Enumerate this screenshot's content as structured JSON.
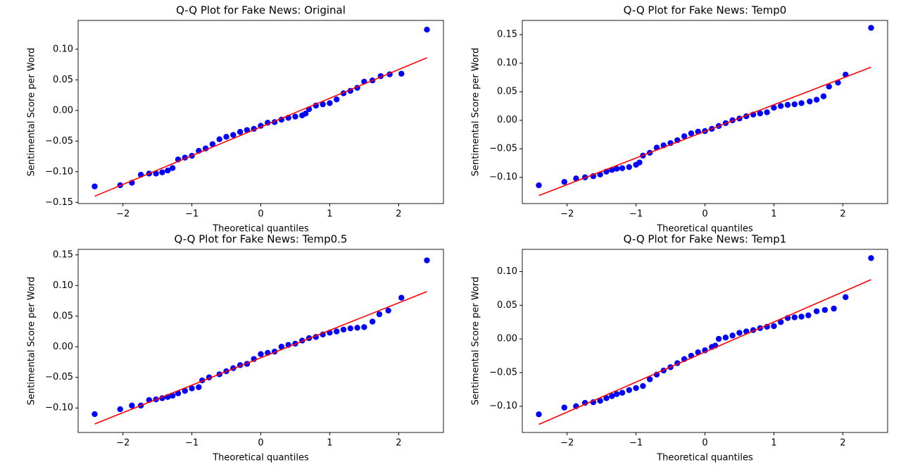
{
  "chart_data": [
    {
      "type": "scatter",
      "title": "Q-Q Plot for Fake News: Original",
      "xlabel": "Theoretical quantiles",
      "ylabel": "Sentimental Score per Word",
      "xlim": [
        -2.65,
        2.65
      ],
      "ylim": [
        -0.152,
        0.147
      ],
      "xticks": [
        {
          "value": -2,
          "label": "−2"
        },
        {
          "value": -1,
          "label": "−1"
        },
        0,
        1,
        2
      ],
      "yticks": [
        {
          "value": -0.15,
          "label": "−0.15"
        },
        {
          "value": -0.1,
          "label": "−0.10"
        },
        {
          "value": -0.05,
          "label": "−0.05"
        },
        {
          "value": 0,
          "label": "0.00"
        },
        {
          "value": 0.05,
          "label": "0.05"
        },
        {
          "value": 0.1,
          "label": "0.10"
        }
      ],
      "color": "#0000ff",
      "x": [
        -2.41,
        -2.04,
        -1.87,
        -1.74,
        -1.62,
        -1.52,
        -1.43,
        -1.35,
        -1.28,
        -1.2,
        -1.1,
        -1.0,
        -0.9,
        -0.8,
        -0.7,
        -0.6,
        -0.5,
        -0.4,
        -0.3,
        -0.2,
        -0.1,
        0,
        0.1,
        0.2,
        0.3,
        0.4,
        0.5,
        0.6,
        0.65,
        0.7,
        0.8,
        0.9,
        1.0,
        1.1,
        1.2,
        1.3,
        1.4,
        1.5,
        1.62,
        1.74,
        1.87,
        2.04,
        2.41
      ],
      "values": [
        -0.124,
        -0.122,
        -0.118,
        -0.105,
        -0.103,
        -0.103,
        -0.101,
        -0.098,
        -0.094,
        -0.08,
        -0.077,
        -0.074,
        -0.066,
        -0.062,
        -0.055,
        -0.047,
        -0.043,
        -0.04,
        -0.035,
        -0.032,
        -0.03,
        -0.025,
        -0.02,
        -0.019,
        -0.015,
        -0.012,
        -0.01,
        -0.008,
        -0.005,
        0.002,
        0.008,
        0.01,
        0.012,
        0.018,
        0.028,
        0.032,
        0.037,
        0.047,
        0.049,
        0.056,
        0.059,
        0.06,
        0.132
      ],
      "fit": {
        "color": "#ff0000",
        "x": [
          -2.41,
          2.41
        ],
        "values": [
          -0.14,
          0.086
        ]
      }
    },
    {
      "type": "scatter",
      "title": "Q-Q Plot for Fake News: Temp0",
      "xlabel": "Theoretical quantiles",
      "ylabel": "Sentimental Score per Word",
      "xlim": [
        -2.65,
        2.65
      ],
      "ylim": [
        -0.146,
        0.175
      ],
      "xticks": [
        {
          "value": -2,
          "label": "−2"
        },
        {
          "value": -1,
          "label": "−1"
        },
        0,
        1,
        2
      ],
      "yticks": [
        {
          "value": -0.1,
          "label": "−0.10"
        },
        {
          "value": -0.05,
          "label": "−0.05"
        },
        {
          "value": 0,
          "label": "0.00"
        },
        {
          "value": 0.05,
          "label": "0.05"
        },
        {
          "value": 0.1,
          "label": "0.10"
        },
        {
          "value": 0.15,
          "label": "0.15"
        }
      ],
      "color": "#0000ff",
      "x": [
        -2.41,
        -2.04,
        -1.87,
        -1.74,
        -1.62,
        -1.52,
        -1.43,
        -1.35,
        -1.28,
        -1.2,
        -1.1,
        -1.0,
        -0.95,
        -0.9,
        -0.8,
        -0.7,
        -0.6,
        -0.5,
        -0.4,
        -0.3,
        -0.2,
        -0.1,
        0,
        0.1,
        0.2,
        0.3,
        0.4,
        0.5,
        0.6,
        0.7,
        0.8,
        0.9,
        1.0,
        1.1,
        1.2,
        1.3,
        1.4,
        1.52,
        1.62,
        1.72,
        1.8,
        1.93,
        2.04,
        2.41
      ],
      "values": [
        -0.114,
        -0.108,
        -0.102,
        -0.1,
        -0.098,
        -0.095,
        -0.09,
        -0.087,
        -0.085,
        -0.084,
        -0.082,
        -0.078,
        -0.074,
        -0.062,
        -0.057,
        -0.048,
        -0.044,
        -0.04,
        -0.035,
        -0.028,
        -0.023,
        -0.02,
        -0.019,
        -0.015,
        -0.01,
        -0.005,
        0.0,
        0.003,
        0.007,
        0.01,
        0.012,
        0.014,
        0.022,
        0.025,
        0.027,
        0.028,
        0.03,
        0.033,
        0.036,
        0.042,
        0.059,
        0.066,
        0.08,
        0.162
      ],
      "fit": {
        "color": "#ff0000",
        "x": [
          -2.41,
          2.41
        ],
        "values": [
          -0.132,
          0.093
        ]
      }
    },
    {
      "type": "scatter",
      "title": "Q-Q Plot for Fake News: Temp0.5",
      "xlabel": "Theoretical quantiles",
      "ylabel": "Sentimental Score per Word",
      "xlim": [
        -2.65,
        2.65
      ],
      "ylim": [
        -0.14,
        0.159
      ],
      "xticks": [
        {
          "value": -2,
          "label": "−2"
        },
        {
          "value": -1,
          "label": "−1"
        },
        0,
        1,
        2
      ],
      "yticks": [
        {
          "value": -0.1,
          "label": "−0.10"
        },
        {
          "value": -0.05,
          "label": "−0.05"
        },
        {
          "value": 0,
          "label": "0.00"
        },
        {
          "value": 0.05,
          "label": "0.05"
        },
        {
          "value": 0.1,
          "label": "0.10"
        },
        {
          "value": 0.15,
          "label": "0.15"
        }
      ],
      "color": "#0000ff",
      "x": [
        -2.41,
        -2.04,
        -1.87,
        -1.74,
        -1.62,
        -1.52,
        -1.43,
        -1.35,
        -1.28,
        -1.2,
        -1.1,
        -1.0,
        -0.9,
        -0.85,
        -0.75,
        -0.6,
        -0.5,
        -0.4,
        -0.3,
        -0.2,
        -0.1,
        0,
        0.1,
        0.2,
        0.3,
        0.4,
        0.5,
        0.6,
        0.7,
        0.8,
        0.9,
        1.0,
        1.1,
        1.2,
        1.3,
        1.4,
        1.5,
        1.62,
        1.72,
        1.85,
        2.04,
        2.41
      ],
      "values": [
        -0.11,
        -0.102,
        -0.096,
        -0.096,
        -0.087,
        -0.086,
        -0.084,
        -0.082,
        -0.08,
        -0.076,
        -0.072,
        -0.068,
        -0.066,
        -0.055,
        -0.05,
        -0.045,
        -0.04,
        -0.035,
        -0.03,
        -0.028,
        -0.02,
        -0.012,
        -0.01,
        -0.008,
        0.0,
        0.003,
        0.005,
        0.01,
        0.014,
        0.016,
        0.02,
        0.023,
        0.025,
        0.028,
        0.03,
        0.031,
        0.032,
        0.041,
        0.053,
        0.059,
        0.08,
        0.141
      ],
      "fit": {
        "color": "#ff0000",
        "x": [
          -2.41,
          2.41
        ],
        "values": [
          -0.126,
          0.09
        ]
      }
    },
    {
      "type": "scatter",
      "title": "Q-Q Plot for Fake News: Temp1",
      "xlabel": "Theoretical quantiles",
      "ylabel": "Sentimental Score per Word",
      "xlim": [
        -2.65,
        2.65
      ],
      "ylim": [
        -0.139,
        0.133
      ],
      "xticks": [
        {
          "value": -2,
          "label": "−2"
        },
        {
          "value": -1,
          "label": "−1"
        },
        0,
        1,
        2
      ],
      "yticks": [
        {
          "value": -0.1,
          "label": "−0.10"
        },
        {
          "value": -0.05,
          "label": "−0.05"
        },
        {
          "value": 0,
          "label": "0.00"
        },
        {
          "value": 0.05,
          "label": "0.05"
        },
        {
          "value": 0.1,
          "label": "0.10"
        }
      ],
      "color": "#0000ff",
      "x": [
        -2.41,
        -2.04,
        -1.87,
        -1.74,
        -1.62,
        -1.52,
        -1.43,
        -1.35,
        -1.28,
        -1.2,
        -1.1,
        -1.0,
        -0.9,
        -0.8,
        -0.7,
        -0.6,
        -0.5,
        -0.4,
        -0.3,
        -0.2,
        -0.1,
        0,
        0.1,
        0.15,
        0.2,
        0.3,
        0.4,
        0.5,
        0.6,
        0.7,
        0.8,
        0.9,
        1.0,
        1.1,
        1.2,
        1.3,
        1.4,
        1.5,
        1.62,
        1.74,
        1.87,
        2.04,
        2.41
      ],
      "values": [
        -0.112,
        -0.102,
        -0.1,
        -0.095,
        -0.094,
        -0.092,
        -0.088,
        -0.085,
        -0.082,
        -0.08,
        -0.076,
        -0.073,
        -0.07,
        -0.06,
        -0.053,
        -0.047,
        -0.042,
        -0.036,
        -0.03,
        -0.025,
        -0.02,
        -0.017,
        -0.012,
        -0.01,
        0.0,
        0.002,
        0.005,
        0.009,
        0.011,
        0.013,
        0.016,
        0.018,
        0.019,
        0.025,
        0.031,
        0.032,
        0.033,
        0.035,
        0.041,
        0.043,
        0.045,
        0.062,
        0.12
      ],
      "fit": {
        "color": "#ff0000",
        "x": [
          -2.41,
          2.41
        ],
        "values": [
          -0.127,
          0.088
        ]
      }
    }
  ]
}
